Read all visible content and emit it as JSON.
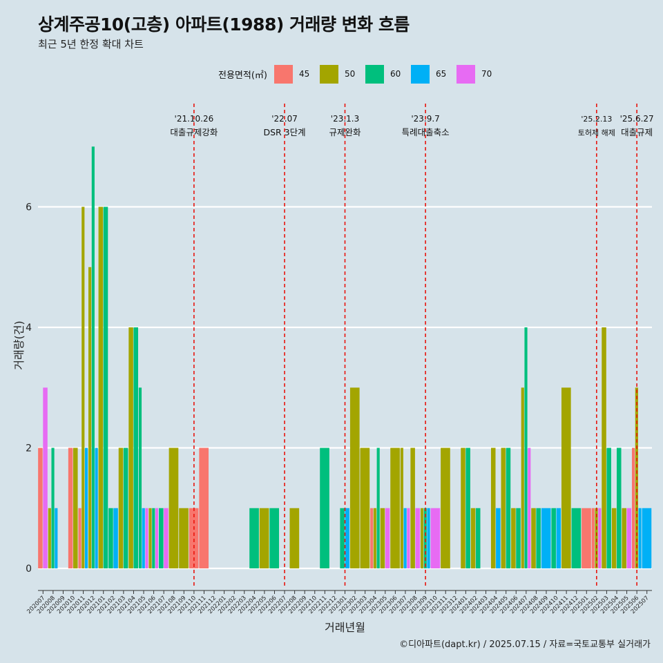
{
  "title": "상계주공10(고층) 아파트(1988) 거래량 변화 흐름",
  "subtitle": "최근 5년 한정 확대 차트",
  "source": "©디아파트(dapt.kr) / 2025.07.15 / 자료=국토교통부 실거래가",
  "legend": {
    "title": "전용면적(㎡)",
    "items": [
      {
        "label": "45",
        "color": "#f8766d"
      },
      {
        "label": "50",
        "color": "#a3a500"
      },
      {
        "label": "60",
        "color": "#00bf7d"
      },
      {
        "label": "65",
        "color": "#00b0f6"
      },
      {
        "label": "70",
        "color": "#e76bf3"
      }
    ]
  },
  "chart_data": {
    "type": "bar",
    "xlabel": "거래년월",
    "ylabel": "거래량(건)",
    "ylim": [
      -0.3,
      7.5
    ],
    "yticks": [
      0,
      2,
      4,
      6
    ],
    "grid": true,
    "legend_position": "top",
    "categories": [
      "202007",
      "202008",
      "202009",
      "202010",
      "202011",
      "202012",
      "202101",
      "202102",
      "202103",
      "202104",
      "202105",
      "202106",
      "202107",
      "202108",
      "202109",
      "202110",
      "202111",
      "202112",
      "202201",
      "202202",
      "202203",
      "202204",
      "202205",
      "202206",
      "202207",
      "202208",
      "202209",
      "202210",
      "202211",
      "202212",
      "202301",
      "202302",
      "202303",
      "202304",
      "202305",
      "202306",
      "202307",
      "202308",
      "202309",
      "202310",
      "202311",
      "202312",
      "202401",
      "202402",
      "202403",
      "202404",
      "202405",
      "202406",
      "202407",
      "202408",
      "202409",
      "202410",
      "202411",
      "202412",
      "202501",
      "202502",
      "202503",
      "202504",
      "202505",
      "202506",
      "202507"
    ],
    "series": [
      {
        "name": "45",
        "values": [
          2,
          0,
          0,
          2,
          1,
          0,
          0,
          0,
          0,
          0,
          0,
          0,
          0,
          0,
          0,
          1,
          2,
          0,
          0,
          0,
          0,
          0,
          0,
          0,
          0,
          0,
          0,
          0,
          0,
          0,
          0,
          0,
          0,
          1,
          0,
          0,
          0,
          0,
          0,
          0,
          0,
          0,
          0,
          0,
          0,
          0,
          0,
          0,
          0,
          0,
          0,
          0,
          0,
          0,
          1,
          1,
          0,
          0,
          0,
          2,
          0
        ]
      },
      {
        "name": "50",
        "values": [
          0,
          1,
          0,
          2,
          6,
          5,
          6,
          0,
          2,
          4,
          0,
          1,
          0,
          2,
          1,
          0,
          0,
          0,
          0,
          0,
          0,
          0,
          1,
          0,
          0,
          1,
          0,
          0,
          0,
          0,
          0,
          3,
          2,
          1,
          1,
          2,
          2,
          2,
          1,
          0,
          2,
          0,
          2,
          1,
          0,
          2,
          2,
          1,
          3,
          1,
          0,
          0,
          3,
          0,
          0,
          1,
          4,
          1,
          1,
          3,
          0
        ]
      },
      {
        "name": "60",
        "values": [
          0,
          2,
          0,
          0,
          0,
          7,
          6,
          1,
          2,
          4,
          3,
          1,
          1,
          0,
          0,
          0,
          0,
          0,
          0,
          0,
          0,
          1,
          0,
          1,
          0,
          0,
          0,
          0,
          2,
          0,
          1,
          0,
          0,
          2,
          0,
          0,
          0,
          0,
          1,
          0,
          0,
          0,
          2,
          1,
          0,
          0,
          2,
          1,
          4,
          1,
          0,
          1,
          0,
          1,
          0,
          0,
          2,
          2,
          0,
          0,
          0
        ]
      },
      {
        "name": "65",
        "values": [
          0,
          1,
          0,
          0,
          2,
          2,
          0,
          1,
          0,
          0,
          1,
          0,
          0,
          0,
          0,
          0,
          0,
          0,
          0,
          0,
          0,
          0,
          0,
          0,
          0,
          0,
          0,
          0,
          0,
          0,
          1,
          0,
          0,
          0,
          0,
          0,
          1,
          0,
          1,
          0,
          0,
          0,
          0,
          0,
          0,
          1,
          0,
          0,
          0,
          0,
          1,
          1,
          0,
          0,
          0,
          0,
          0,
          0,
          0,
          1,
          1
        ]
      },
      {
        "name": "70",
        "values": [
          3,
          0,
          0,
          0,
          0,
          0,
          0,
          0,
          0,
          0,
          1,
          1,
          1,
          0,
          0,
          0,
          0,
          0,
          0,
          0,
          0,
          0,
          0,
          0,
          0,
          0,
          0,
          0,
          0,
          0,
          0,
          0,
          0,
          0,
          1,
          0,
          1,
          1,
          0,
          1,
          0,
          0,
          0,
          0,
          0,
          0,
          0,
          0,
          2,
          0,
          0,
          0,
          0,
          0,
          0,
          1,
          0,
          0,
          1,
          0,
          0
        ]
      }
    ],
    "annotations": [
      {
        "date": "'21.10.26",
        "label": "대출규제강화",
        "at": "202110"
      },
      {
        "date": "'22.07",
        "label": "DSR 3단계",
        "at": "202207"
      },
      {
        "date": "'23.1.3",
        "label": "규제완화",
        "at": "202301"
      },
      {
        "date": "'23.9.7",
        "label": "특례대출축소",
        "at": "202309"
      },
      {
        "date": "'25.2.13",
        "label": "토허제 해제",
        "at": "202502"
      },
      {
        "date": "'25.6.27",
        "label": "대출규제",
        "at": "202506"
      }
    ]
  }
}
